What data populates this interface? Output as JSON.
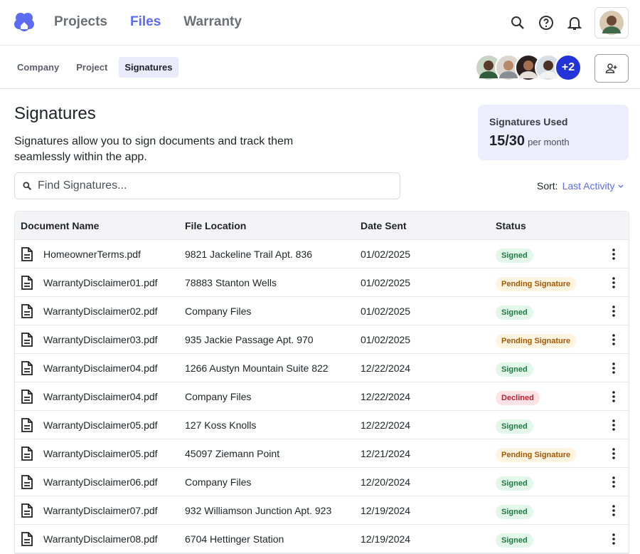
{
  "nav": {
    "items": [
      "Projects",
      "Files",
      "Warranty"
    ],
    "active": 1
  },
  "tabs": {
    "items": [
      "Company",
      "Project",
      "Signatures"
    ],
    "active": 2
  },
  "collaborators_more": "+2",
  "page": {
    "title": "Signatures",
    "description": "Signatures allow you to sign documents and track them seamlessly within the app.",
    "search_placeholder": "Find Signatures...",
    "sort_label": "Sort:",
    "sort_value": "Last Activity"
  },
  "usage": {
    "label": "Signatures Used",
    "count": "15/30",
    "period": "per month"
  },
  "table": {
    "columns": [
      "Document Name",
      "File Location",
      "Date Sent",
      "Status"
    ],
    "rows": [
      {
        "name": "HomeownerTerms.pdf",
        "location": "9821 Jackeline Trail Apt. 836",
        "date": "01/02/2025",
        "status": "Signed",
        "tone": "success"
      },
      {
        "name": "WarrantyDisclaimer01.pdf",
        "location": "78883 Stanton Wells",
        "date": "01/02/2025",
        "status": "Pending Signature",
        "tone": "warning"
      },
      {
        "name": "WarrantyDisclaimer02.pdf",
        "location": "Company Files",
        "date": "01/02/2025",
        "status": "Signed",
        "tone": "success"
      },
      {
        "name": "WarrantyDisclaimer03.pdf",
        "location": "935 Jackie Passage Apt. 970",
        "date": "01/02/2025",
        "status": "Pending Signature",
        "tone": "warning"
      },
      {
        "name": "WarrantyDisclaimer04.pdf",
        "location": "1266 Austyn Mountain Suite 822",
        "date": "12/22/2024",
        "status": "Signed",
        "tone": "success"
      },
      {
        "name": "WarrantyDisclaimer04.pdf",
        "location": "Company Files",
        "date": "12/22/2024",
        "status": "Declined",
        "tone": "danger"
      },
      {
        "name": "WarrantyDisclaimer05.pdf",
        "location": "127 Koss Knolls",
        "date": "12/22/2024",
        "status": "Signed",
        "tone": "success"
      },
      {
        "name": "WarrantyDisclaimer05.pdf",
        "location": "45097 Ziemann Point",
        "date": "12/21/2024",
        "status": "Pending Signature",
        "tone": "warning"
      },
      {
        "name": "WarrantyDisclaimer06.pdf",
        "location": "Company Files",
        "date": "12/20/2024",
        "status": "Signed",
        "tone": "success"
      },
      {
        "name": "WarrantyDisclaimer07.pdf",
        "location": "932 Williamson Junction Apt. 923",
        "date": "12/19/2024",
        "status": "Signed",
        "tone": "success"
      },
      {
        "name": "WarrantyDisclaimer08.pdf",
        "location": "6704 Hettinger Station",
        "date": "12/19/2024",
        "status": "Signed",
        "tone": "success"
      }
    ]
  }
}
